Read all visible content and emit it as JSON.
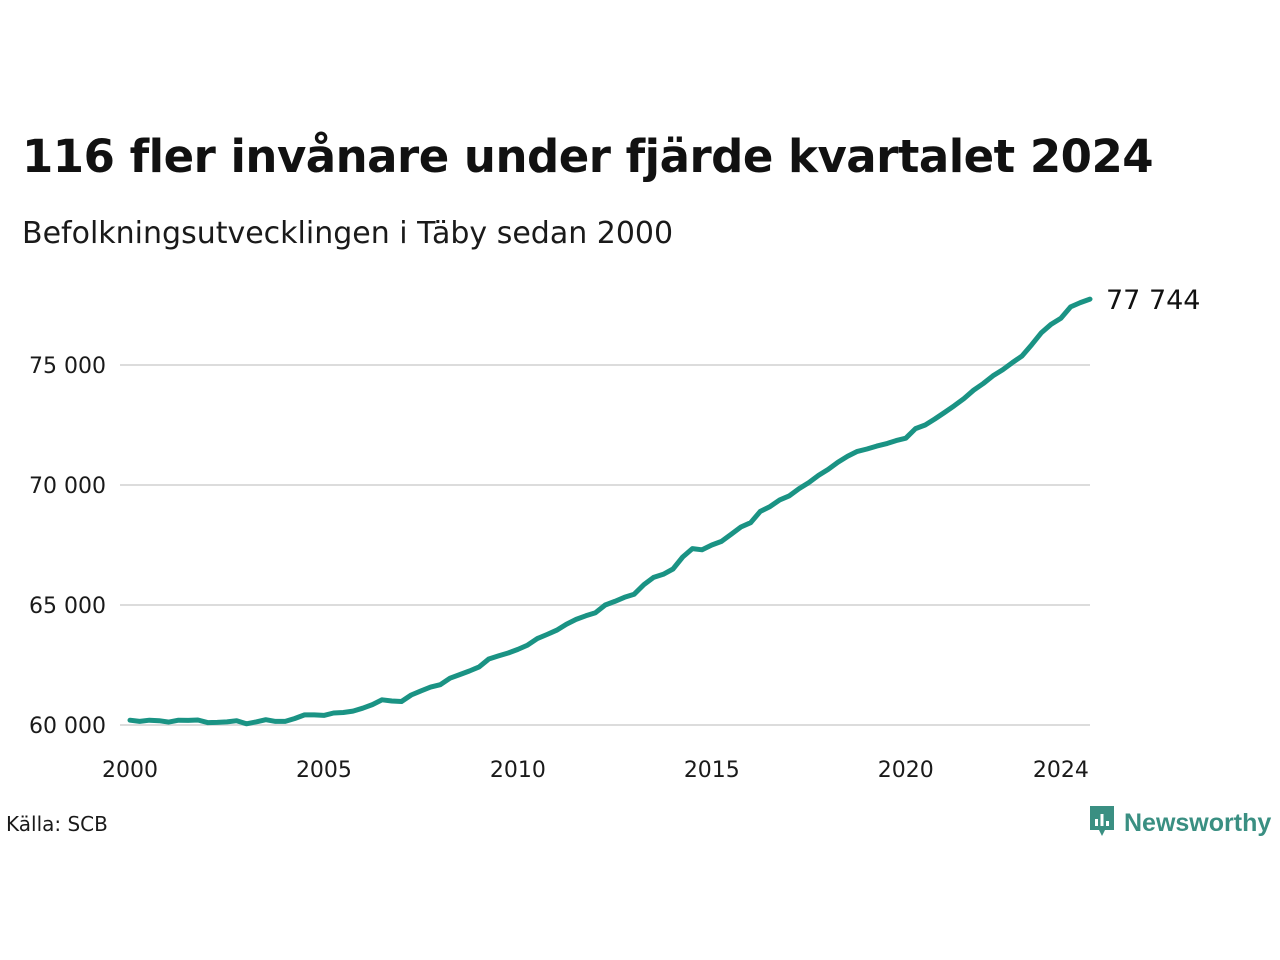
{
  "header": {
    "title": "116 fler invånare under fjärde kvartalet 2024",
    "subtitle": "Befolkningsutvecklingen i Täby sedan 2000"
  },
  "footer": {
    "source": "Källa: SCB",
    "brand": "Newsworthy",
    "brand_icon": "newsworthy-logo-icon"
  },
  "colors": {
    "line": "#1a9384",
    "grid": "#dcdcdc",
    "brand": "#3a8f82"
  },
  "chart_data": {
    "type": "line",
    "title": "116 fler invånare under fjärde kvartalet 2024",
    "subtitle": "Befolkningsutvecklingen i Täby sedan 2000",
    "xlabel": "",
    "ylabel": "",
    "xlim": [
      2000.0,
      2024.75
    ],
    "ylim": [
      59500,
      78000
    ],
    "x_ticks": [
      2000,
      2005,
      2010,
      2015,
      2020,
      2024
    ],
    "x_tick_labels": [
      "2000",
      "2005",
      "2010",
      "2015",
      "2020",
      "2024"
    ],
    "y_ticks": [
      60000,
      65000,
      70000,
      75000
    ],
    "y_tick_labels": [
      "60 000",
      "65 000",
      "70 000",
      "75 000"
    ],
    "grid": "horizontal",
    "legend": "none",
    "end_label": "77 744",
    "series": [
      {
        "start_year": 2000,
        "quarter_step": 0.25,
        "values": [
          60200,
          60150,
          60200,
          60180,
          60120,
          60200,
          60190,
          60210,
          60100,
          60110,
          60130,
          60180,
          60050,
          60130,
          60220,
          60150,
          60150,
          60270,
          60420,
          60420,
          60400,
          60500,
          60520,
          60580,
          60700,
          60850,
          61050,
          61000,
          60980,
          61250,
          61420,
          61580,
          61680,
          61950,
          62100,
          62250,
          62420,
          62750,
          62880,
          63000,
          63150,
          63330,
          63600,
          63770,
          63950,
          64200,
          64400,
          64550,
          64680,
          65000,
          65150,
          65320,
          65450,
          65850,
          66150,
          66280,
          66500,
          67000,
          67350,
          67300,
          67500,
          67650,
          67950,
          68250,
          68430,
          68900,
          69100,
          69380,
          69550,
          69850,
          70100,
          70400,
          70650,
          70950,
          71200,
          71400,
          71500,
          71620,
          71720,
          71850,
          71950,
          72350,
          72500,
          72750,
          73020,
          73300,
          73600,
          73950,
          74230,
          74550,
          74800,
          75100,
          75380,
          75850,
          76350,
          76700,
          76950,
          77420,
          77600,
          77744
        ]
      }
    ]
  }
}
